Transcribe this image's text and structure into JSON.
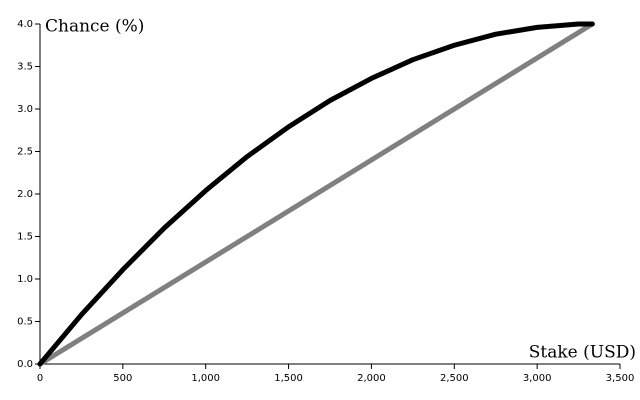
{
  "chart_data": {
    "type": "line",
    "y_label": "Chance (%)",
    "x_label": "Stake (USD)",
    "x": [
      0,
      250,
      500,
      750,
      1000,
      1250,
      1500,
      1750,
      2000,
      2250,
      2500,
      2750,
      3000,
      3250,
      3333
    ],
    "series": [
      {
        "color": "#000000",
        "values": [
          0,
          0.58,
          1.11,
          1.6,
          2.04,
          2.44,
          2.79,
          3.1,
          3.36,
          3.58,
          3.75,
          3.88,
          3.96,
          4.0,
          4.0
        ]
      },
      {
        "color": "#808080",
        "values": [
          0,
          0.3,
          0.6,
          0.9,
          1.2,
          1.5,
          1.8,
          2.1,
          2.4,
          2.7,
          3.0,
          3.3,
          3.6,
          3.9,
          4.0
        ]
      }
    ],
    "xlim": [
      0,
      3500
    ],
    "xticks": [
      0,
      500,
      {
        "value": 1000,
        "label": "1,000"
      },
      {
        "value": 1500,
        "label": "1,500"
      },
      {
        "value": 2000,
        "label": "2,000"
      },
      {
        "value": 2500,
        "label": "2,500"
      },
      {
        "value": 3000,
        "label": "3,000"
      },
      {
        "value": 3500,
        "label": "3,500"
      }
    ],
    "ylim": [
      0,
      4
    ],
    "yticks": [
      {
        "value": 0,
        "label": "0.0"
      },
      {
        "value": 0.5,
        "label": "0.5"
      },
      {
        "value": 1,
        "label": "1.0"
      },
      {
        "value": 1.5,
        "label": "1.5"
      },
      {
        "value": 2,
        "label": "2.0"
      },
      {
        "value": 2.5,
        "label": "2.5"
      },
      {
        "value": 3,
        "label": "3.0"
      },
      {
        "value": 3.5,
        "label": "3.5"
      },
      {
        "value": 4,
        "label": "4.0"
      }
    ],
    "grid": false
  }
}
